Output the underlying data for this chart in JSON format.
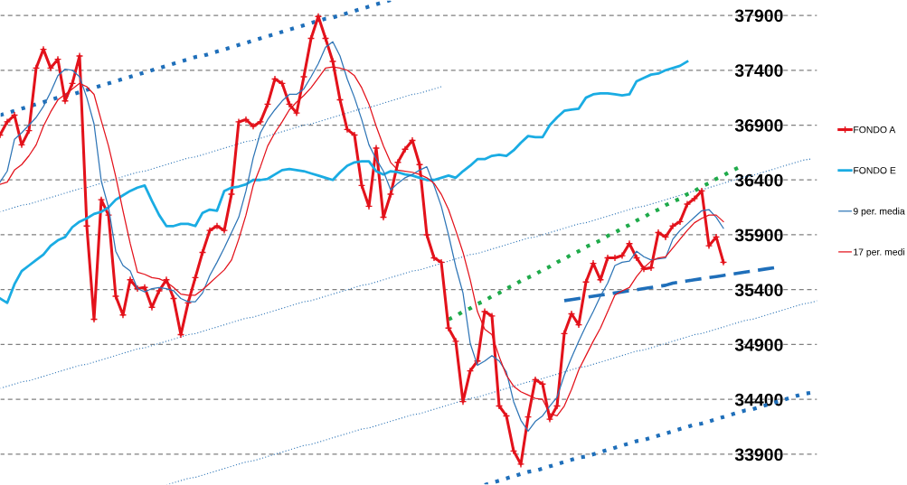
{
  "chart_data": {
    "type": "line",
    "categories": [
      null,
      null,
      null,
      null,
      null,
      null,
      null,
      null,
      null,
      null,
      null,
      null,
      null,
      null,
      null,
      null,
      null,
      null,
      null,
      null,
      null,
      null,
      null,
      null,
      null,
      null,
      null,
      null,
      null,
      null,
      null,
      null,
      null,
      null,
      null,
      null,
      null,
      null,
      null,
      null,
      null,
      null,
      null,
      null,
      null,
      null,
      null,
      null,
      null,
      null,
      null,
      null,
      null,
      null,
      null,
      null,
      null,
      null,
      null,
      null,
      null,
      null,
      null,
      null,
      null,
      null,
      null,
      null,
      null,
      null,
      null,
      null,
      null,
      null,
      null,
      null,
      null,
      null,
      null,
      null,
      null,
      null,
      null,
      null,
      null,
      null,
      null,
      null,
      null,
      null,
      null,
      null,
      null,
      null,
      null,
      null,
      null,
      null,
      null,
      null,
      null,
      null,
      null,
      null,
      null,
      null,
      null,
      null,
      null,
      null,
      null,
      null,
      null,
      null
    ],
    "ylim": [
      33620,
      38040
    ],
    "yticks": [
      33900,
      34400,
      34900,
      35400,
      35900,
      36400,
      36900,
      37400,
      37900
    ],
    "grid": "y",
    "legend": "right",
    "series": [
      {
        "name": "FONDO A",
        "color": "#e3121b",
        "marker": "cross",
        "values": [
          36810,
          36930,
          36990,
          36720,
          36850,
          37420,
          37590,
          37420,
          37500,
          37120,
          37280,
          37530,
          35980,
          35130,
          36220,
          36080,
          35340,
          35170,
          35490,
          35410,
          35420,
          35240,
          35390,
          35490,
          35320,
          34990,
          35280,
          35510,
          35740,
          35940,
          35980,
          35940,
          36270,
          36930,
          36950,
          36890,
          36930,
          37090,
          37320,
          37280,
          37090,
          37010,
          37340,
          37690,
          37890,
          37690,
          37480,
          37130,
          36860,
          36810,
          36350,
          36160,
          36690,
          36060,
          36270,
          36560,
          36680,
          36760,
          36540,
          35900,
          35690,
          35650,
          35050,
          34930,
          34380,
          34660,
          34750,
          35200,
          35160,
          34340,
          34250,
          33930,
          33810,
          34240,
          34580,
          34540,
          34220,
          34340,
          35000,
          35180,
          35080,
          35470,
          35640,
          35490,
          35690,
          35690,
          35710,
          35820,
          35690,
          35590,
          35600,
          35920,
          35880,
          35980,
          36020,
          36180,
          36230,
          36300,
          35800,
          35880,
          35650,
          null,
          null,
          null,
          null,
          null,
          null,
          null,
          null,
          null,
          null,
          null,
          null,
          null
        ]
      },
      {
        "name": "FONDO E",
        "color": "#1aace3",
        "values": [
          35320,
          35280,
          35450,
          35570,
          35620,
          35670,
          35720,
          35800,
          35850,
          35880,
          35970,
          36020,
          36050,
          36090,
          36110,
          36150,
          36220,
          36260,
          36300,
          36330,
          36350,
          36210,
          36080,
          35980,
          35980,
          36000,
          36000,
          35980,
          36100,
          36130,
          36120,
          36300,
          36330,
          36340,
          36360,
          36400,
          36400,
          36410,
          36450,
          36490,
          36500,
          36490,
          36480,
          36460,
          36440,
          36420,
          36400,
          36470,
          36530,
          36560,
          36570,
          36570,
          36480,
          36450,
          36480,
          36470,
          36450,
          36440,
          36420,
          36400,
          36400,
          36420,
          36440,
          36420,
          36480,
          36530,
          36590,
          36590,
          36620,
          36630,
          36620,
          36670,
          36740,
          36800,
          36790,
          36790,
          36900,
          36970,
          37030,
          37040,
          37050,
          37150,
          37180,
          37190,
          37190,
          37180,
          37170,
          37180,
          37300,
          37330,
          37360,
          37370,
          37400,
          37420,
          37440,
          37480,
          null,
          null,
          null,
          null,
          null,
          null,
          null,
          null,
          null,
          null,
          null,
          null,
          null,
          null,
          null,
          null,
          null,
          null
        ]
      },
      {
        "name": "9 per. media",
        "color": "#2e75b6",
        "values": [
          36380,
          36480,
          36770,
          36830,
          36900,
          36970,
          37070,
          37200,
          37350,
          37410,
          37400,
          37340,
          37150,
          36910,
          36390,
          36150,
          35750,
          35620,
          35570,
          35410,
          35380,
          35410,
          35420,
          35410,
          35390,
          35320,
          35290,
          35290,
          35370,
          35530,
          35650,
          35780,
          35920,
          36060,
          36300,
          36600,
          36830,
          36950,
          37040,
          37120,
          37180,
          37180,
          37230,
          37340,
          37460,
          37610,
          37660,
          37530,
          37320,
          37150,
          36950,
          36720,
          36590,
          36480,
          36310,
          36370,
          36420,
          36450,
          36490,
          36520,
          36350,
          36160,
          35900,
          35610,
          35370,
          34910,
          34710,
          34750,
          34800,
          34750,
          34650,
          34380,
          34210,
          34110,
          34200,
          34250,
          34340,
          34420,
          34620,
          34780,
          34930,
          35070,
          35200,
          35340,
          35460,
          35620,
          35650,
          35660,
          35750,
          35700,
          35670,
          35680,
          35690,
          35860,
          35940,
          36000,
          36060,
          36120,
          36130,
          36060,
          35960,
          null,
          null,
          null,
          null,
          null,
          null,
          null,
          null,
          null,
          null,
          null,
          null,
          null
        ]
      },
      {
        "name": "17 per. medi",
        "color": "#e3121b",
        "values": [
          36360,
          36380,
          36490,
          36540,
          36620,
          36720,
          36890,
          37020,
          37130,
          37180,
          37230,
          37280,
          37250,
          37180,
          36940,
          36710,
          36430,
          36120,
          35820,
          35560,
          35540,
          35510,
          35500,
          35470,
          35420,
          35360,
          35350,
          35350,
          35400,
          35460,
          35520,
          35580,
          35670,
          35860,
          36080,
          36350,
          36520,
          36710,
          36830,
          36930,
          37040,
          37110,
          37170,
          37240,
          37330,
          37420,
          37430,
          37420,
          37400,
          37350,
          37240,
          37090,
          36890,
          36710,
          36560,
          36490,
          36480,
          36470,
          36450,
          36420,
          36370,
          36270,
          36130,
          35940,
          35740,
          35490,
          35200,
          35040,
          34990,
          34790,
          34620,
          34520,
          34470,
          34440,
          34410,
          34400,
          34270,
          34250,
          34340,
          34490,
          34670,
          34800,
          34930,
          35050,
          35200,
          35350,
          35390,
          35420,
          35520,
          35600,
          35660,
          35690,
          35700,
          35780,
          35860,
          35940,
          36010,
          36050,
          36080,
          36080,
          36020,
          null,
          null,
          null,
          null,
          null,
          null,
          null,
          null,
          null,
          null,
          null,
          null,
          null
        ]
      },
      {
        "color": "#1f6fba",
        "line_style": "dotted",
        "values": [
          36990,
          37010,
          37030,
          37050,
          37070,
          37090,
          37110,
          37130,
          37150,
          37170,
          37180,
          37200,
          37220,
          37240,
          37260,
          37280,
          37300,
          37320,
          37340,
          37360,
          37380,
          37400,
          37420,
          37440,
          37460,
          37480,
          37500,
          37520,
          37530,
          37550,
          37570,
          37590,
          37610,
          37630,
          37650,
          37670,
          37690,
          37710,
          37730,
          37750,
          37770,
          37790,
          37810,
          37830,
          37850,
          37870,
          37880,
          37900,
          37920,
          37940,
          37960,
          37980,
          38000,
          38020,
          38040,
          null,
          null,
          null,
          null,
          null,
          null,
          null,
          null,
          null,
          null,
          null,
          null,
          null,
          null,
          null,
          null,
          null,
          null,
          null,
          null,
          null,
          null,
          null,
          null,
          null,
          null,
          null,
          null,
          null,
          null,
          null,
          null,
          null,
          null,
          null,
          null,
          null,
          null,
          null,
          null,
          null,
          null,
          null,
          null,
          null,
          null,
          null,
          null,
          null,
          null,
          null,
          null,
          null,
          null,
          null,
          null,
          null,
          null,
          null
        ]
      },
      {
        "color": "#2e75b6",
        "line_style": "dotted",
        "values": [
          36110,
          36130,
          36150,
          36170,
          36180,
          36200,
          36220,
          36240,
          36260,
          36280,
          36300,
          36320,
          36330,
          36350,
          36370,
          36390,
          36410,
          36430,
          36450,
          36470,
          36480,
          36500,
          36520,
          36540,
          36560,
          36580,
          36600,
          36610,
          36630,
          36650,
          36670,
          36690,
          36710,
          36730,
          36750,
          36760,
          36780,
          36800,
          36820,
          36840,
          36860,
          36880,
          36900,
          36910,
          36930,
          36950,
          36970,
          36990,
          37010,
          37030,
          37050,
          37060,
          37080,
          37100,
          37120,
          37140,
          37160,
          37180,
          37190,
          37210,
          37230,
          37250,
          null,
          null,
          null,
          null,
          null,
          null,
          null,
          null,
          null,
          null,
          null,
          null,
          null,
          null,
          null,
          null,
          null,
          null,
          null,
          null,
          null,
          null,
          null,
          null,
          null,
          null,
          null,
          null,
          null,
          null,
          null,
          null,
          null,
          null,
          null,
          null,
          null,
          null,
          null,
          null,
          null,
          null,
          null,
          null,
          null,
          null,
          null,
          null,
          null,
          null,
          null,
          null
        ]
      },
      {
        "color": "#2e75b6",
        "line_style": "dotted",
        "values": [
          34500,
          34520,
          34540,
          34560,
          34570,
          34590,
          34610,
          34630,
          34650,
          34670,
          34690,
          34710,
          34720,
          34740,
          34760,
          34780,
          34800,
          34820,
          34840,
          34860,
          34870,
          34890,
          34910,
          34930,
          34950,
          34970,
          34990,
          35000,
          35020,
          35040,
          35060,
          35080,
          35100,
          35120,
          35140,
          35150,
          35170,
          35190,
          35210,
          35230,
          35250,
          35270,
          35290,
          35300,
          35320,
          35340,
          35360,
          35380,
          35400,
          35420,
          35440,
          35450,
          35470,
          35490,
          35510,
          35530,
          35550,
          35570,
          35580,
          35600,
          35620,
          35640,
          35660,
          35680,
          35700,
          35720,
          35730,
          35750,
          35770,
          35790,
          35810,
          35830,
          35850,
          35870,
          35880,
          35900,
          35920,
          35940,
          35960,
          35980,
          36000,
          36010,
          36030,
          36050,
          36070,
          36090,
          36110,
          36130,
          36150,
          36160,
          36180,
          36200,
          36220,
          36240,
          36260,
          36280,
          36300,
          36310,
          36330,
          36350,
          36370,
          36390,
          36410,
          36430,
          36440,
          36460,
          36480,
          36500,
          36520,
          36540,
          36560,
          36580,
          36590,
          null
        ]
      },
      {
        "color": "#2e75b6",
        "line_style": "dotted",
        "values": [
          null,
          null,
          null,
          null,
          null,
          null,
          null,
          null,
          null,
          null,
          null,
          null,
          null,
          null,
          null,
          null,
          null,
          null,
          null,
          null,
          null,
          null,
          null,
          33620,
          33640,
          33660,
          33680,
          33690,
          33710,
          33730,
          33750,
          33770,
          33790,
          33810,
          33830,
          33840,
          33860,
          33880,
          33900,
          33920,
          33940,
          33960,
          33980,
          33990,
          34010,
          34030,
          34050,
          34070,
          34090,
          34110,
          34130,
          34140,
          34160,
          34180,
          34200,
          34220,
          34240,
          34260,
          34270,
          34290,
          34310,
          34330,
          34350,
          34370,
          34390,
          34410,
          34420,
          34440,
          34460,
          34480,
          34500,
          34520,
          34540,
          34560,
          34570,
          34590,
          34610,
          34630,
          34650,
          34670,
          34690,
          34700,
          34720,
          34740,
          34760,
          34780,
          34800,
          34820,
          34840,
          34850,
          34870,
          34890,
          34910,
          34930,
          34950,
          34970,
          34990,
          35000,
          35020,
          35040,
          35060,
          35080,
          35100,
          35120,
          35130,
          35150,
          35170,
          35190,
          35210,
          35230,
          35250,
          35270,
          35280,
          35300
        ]
      },
      {
        "color": "#1f6fba",
        "line_style": "dotted",
        "values": [
          null,
          null,
          null,
          null,
          null,
          null,
          null,
          null,
          null,
          null,
          null,
          null,
          null,
          null,
          null,
          null,
          null,
          null,
          null,
          null,
          null,
          null,
          null,
          null,
          null,
          null,
          null,
          null,
          null,
          null,
          null,
          null,
          null,
          null,
          null,
          null,
          null,
          null,
          null,
          null,
          null,
          null,
          null,
          null,
          null,
          null,
          null,
          null,
          null,
          null,
          null,
          null,
          null,
          null,
          null,
          null,
          null,
          null,
          null,
          null,
          null,
          null,
          null,
          null,
          null,
          null,
          null,
          33620,
          33640,
          33660,
          33680,
          33700,
          33720,
          33740,
          33750,
          33770,
          33790,
          33810,
          33830,
          33850,
          33870,
          33880,
          33900,
          33920,
          33940,
          33960,
          33980,
          34000,
          34020,
          34030,
          34050,
          34070,
          34090,
          34110,
          34130,
          34150,
          34170,
          34180,
          34200,
          34220,
          34240,
          34260,
          34280,
          34300,
          34310,
          34330,
          34350,
          34370,
          34390,
          34410,
          34430,
          34450,
          34460,
          null
        ]
      },
      {
        "color": "#1faa4a",
        "line_style": "dotted",
        "values": [
          null,
          null,
          null,
          null,
          null,
          null,
          null,
          null,
          null,
          null,
          null,
          null,
          null,
          null,
          null,
          null,
          null,
          null,
          null,
          null,
          null,
          null,
          null,
          null,
          null,
          null,
          null,
          null,
          null,
          null,
          null,
          null,
          null,
          null,
          null,
          null,
          null,
          null,
          null,
          null,
          null,
          null,
          null,
          null,
          null,
          null,
          null,
          null,
          null,
          null,
          null,
          null,
          null,
          null,
          null,
          null,
          null,
          null,
          null,
          null,
          null,
          null,
          35130,
          35160,
          35200,
          35230,
          35270,
          35300,
          35340,
          35370,
          35410,
          35440,
          35480,
          35510,
          35540,
          35580,
          35610,
          35650,
          35680,
          35720,
          35750,
          35790,
          35820,
          35850,
          35890,
          35920,
          35960,
          35990,
          36030,
          36060,
          36100,
          36130,
          36170,
          36200,
          36230,
          36270,
          36300,
          36340,
          36370,
          36410,
          36440,
          36480,
          36510,
          null,
          null,
          null,
          null,
          null,
          null,
          null,
          null,
          null,
          null,
          null
        ]
      },
      {
        "color": "#1f6fba",
        "line_style": "dashed",
        "values": [
          null,
          null,
          null,
          null,
          null,
          null,
          null,
          null,
          null,
          null,
          null,
          null,
          null,
          null,
          null,
          null,
          null,
          null,
          null,
          null,
          null,
          null,
          null,
          null,
          null,
          null,
          null,
          null,
          null,
          null,
          null,
          null,
          null,
          null,
          null,
          null,
          null,
          null,
          null,
          null,
          null,
          null,
          null,
          null,
          null,
          null,
          null,
          null,
          null,
          null,
          null,
          null,
          null,
          null,
          null,
          null,
          null,
          null,
          null,
          null,
          null,
          null,
          null,
          null,
          null,
          null,
          null,
          null,
          null,
          null,
          null,
          null,
          null,
          null,
          null,
          null,
          null,
          null,
          35300,
          35310,
          35320,
          35330,
          35340,
          35350,
          35360,
          35370,
          35380,
          35390,
          35400,
          35410,
          35420,
          35430,
          35440,
          35460,
          35470,
          35480,
          35490,
          35500,
          35510,
          35520,
          35530,
          35540,
          35550,
          35560,
          35570,
          35580,
          35590,
          35600,
          null,
          null,
          null,
          null,
          null,
          null
        ]
      }
    ]
  }
}
